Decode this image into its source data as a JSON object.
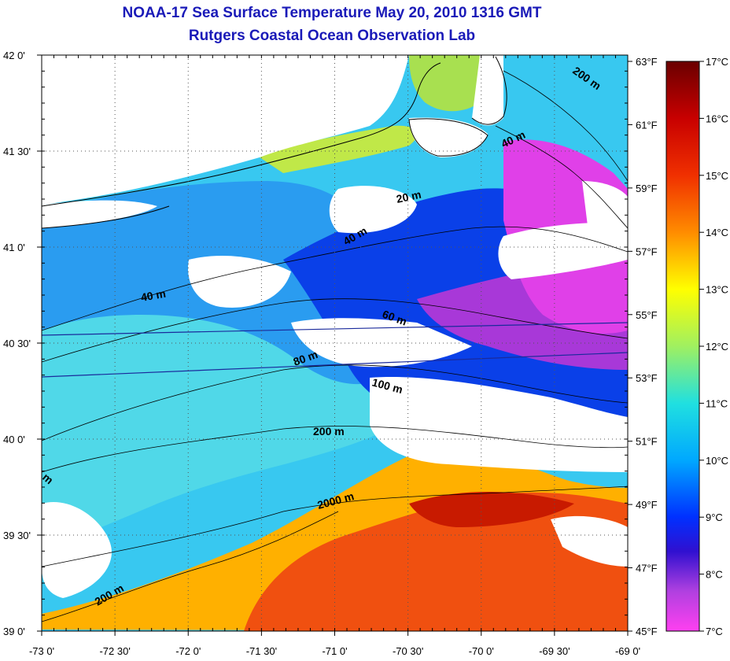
{
  "title": {
    "line1": "NOAA-17 Sea Surface Temperature May 20, 2010 1316 GMT",
    "line2": "Rutgers Coastal Ocean Observation Lab"
  },
  "axes": {
    "lon_labels": [
      "-73 0'",
      "-72 30'",
      "-72 0'",
      "-71 30'",
      "-71 0'",
      "-70 30'",
      "-70 0'",
      "-69 30'",
      "-69 0'"
    ],
    "lat_labels": [
      "42 0'",
      "41 30'",
      "41 0'",
      "40 30'",
      "40 0'",
      "39 30'",
      "39 0'"
    ],
    "fahrenheit_labels": [
      "63°F",
      "61°F",
      "59°F",
      "57°F",
      "55°F",
      "53°F",
      "51°F",
      "49°F",
      "47°F",
      "45°F"
    ]
  },
  "colorbar": {
    "celsius_labels": [
      "17°C",
      "16°C",
      "15°C",
      "14°C",
      "13°C",
      "12°C",
      "11°C",
      "10°C",
      "9°C",
      "8°C",
      "7°C"
    ],
    "colors": [
      "#6a0000",
      "#b00000",
      "#e81a00",
      "#ff6a00",
      "#ffc800",
      "#ffff00",
      "#a8f050",
      "#30e0e0",
      "#00a8ff",
      "#1a40ff",
      "#0000e0",
      "#5a20c0",
      "#c040e0",
      "#ff40f0"
    ]
  },
  "contour_labels": [
    "20 m",
    "40 m",
    "40 m",
    "40 m",
    "60 m",
    "80 m",
    "100 m",
    "200 m",
    "200 m",
    "200 m",
    "2000 m",
    "m"
  ]
}
